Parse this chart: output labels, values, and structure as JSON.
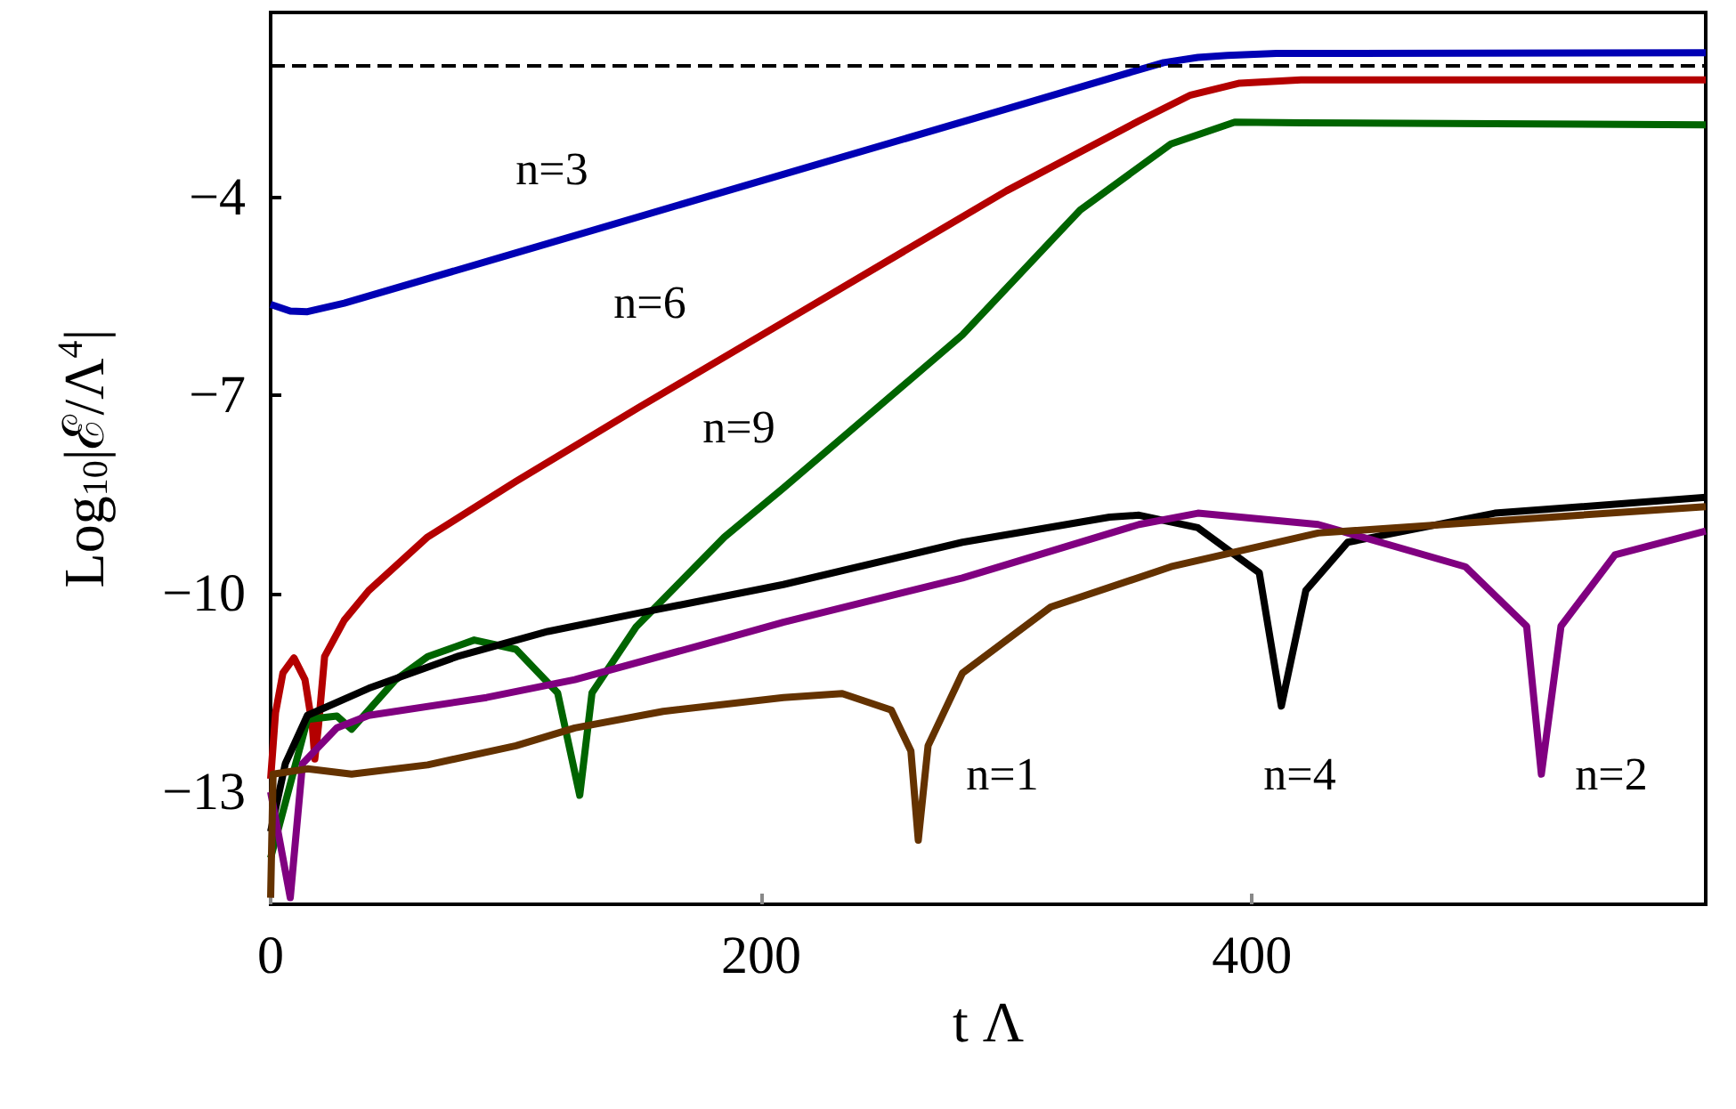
{
  "chart_data": {
    "type": "line",
    "xlabel": "t Λ",
    "ylabel": "Log$_{10}$|ℰ/Λ$^{4}$|",
    "xlim": [
      0,
      585
    ],
    "xticks": [
      0,
      200,
      400
    ],
    "ylim": [
      -14.7,
      -1.2
    ],
    "yticks": [
      -4,
      -7,
      -10,
      -13
    ],
    "grid": false,
    "marker": "none",
    "line_style": "solid",
    "series": [
      {
        "name": "n=3",
        "color": "#0000b4",
        "x": [
          0,
          8,
          15,
          30,
          100,
          209,
          300,
          350,
          364,
          378,
          390,
          410,
          585
        ],
        "values": [
          -5.62,
          -5.72,
          -5.73,
          -5.6,
          -4.84,
          -3.65,
          -2.66,
          -2.11,
          -1.96,
          -1.88,
          -1.85,
          -1.82,
          -1.81
        ]
      },
      {
        "name": "n=6",
        "color": "#b40000",
        "x": [
          0,
          2,
          5,
          9.5,
          14,
          17,
          18,
          19.5,
          22,
          30,
          40,
          64,
          100,
          150,
          209,
          300,
          354,
          375,
          395,
          420,
          585
        ],
        "values": [
          -12.8,
          -11.8,
          -11.2,
          -10.97,
          -11.3,
          -12.0,
          -12.5,
          -12.0,
          -10.95,
          -10.4,
          -9.95,
          -9.14,
          -8.3,
          -7.18,
          -5.89,
          -3.9,
          -2.84,
          -2.45,
          -2.27,
          -2.22,
          -2.22
        ]
      },
      {
        "name": "n=9",
        "color": "#006400",
        "x": [
          0,
          15,
          27,
          33,
          51,
          64,
          83,
          100,
          117,
          126,
          131,
          149,
          185,
          209,
          282,
          330,
          367,
          393,
          420,
          585
        ],
        "values": [
          -14.0,
          -11.9,
          -11.85,
          -12.05,
          -11.3,
          -10.95,
          -10.7,
          -10.84,
          -11.5,
          -13.05,
          -11.5,
          -10.5,
          -9.14,
          -8.4,
          -6.08,
          -4.19,
          -3.19,
          -2.86,
          -2.87,
          -2.9
        ]
      },
      {
        "name": "n=4",
        "color": "#000000",
        "x": [
          0,
          6,
          15,
          40,
          76,
          113,
          149,
          209,
          282,
          342,
          354,
          378,
          403,
          412,
          422,
          439,
          499,
          585
        ],
        "values": [
          -13.6,
          -12.57,
          -11.84,
          -11.43,
          -10.95,
          -10.57,
          -10.3,
          -9.86,
          -9.22,
          -8.84,
          -8.81,
          -9.0,
          -9.68,
          -11.7,
          -9.95,
          -9.22,
          -8.78,
          -8.54
        ]
      },
      {
        "name": "n=2",
        "color": "#800080",
        "x": [
          0,
          8,
          13,
          27,
          40,
          88,
          124,
          185,
          209,
          282,
          354,
          378,
          427,
          487,
          512,
          518,
          526,
          548,
          585
        ],
        "values": [
          -13.0,
          -14.6,
          -12.57,
          -12.03,
          -11.84,
          -11.57,
          -11.3,
          -10.68,
          -10.43,
          -9.76,
          -8.95,
          -8.78,
          -8.95,
          -9.59,
          -10.49,
          -12.73,
          -10.49,
          -9.41,
          -9.05
        ]
      },
      {
        "name": "n=1",
        "color": "#643200",
        "x": [
          0,
          1,
          15,
          33,
          64,
          100,
          124,
          160,
          209,
          233,
          253,
          261,
          264,
          268,
          282,
          318,
          367,
          427,
          585
        ],
        "values": [
          -14.6,
          -12.73,
          -12.65,
          -12.73,
          -12.59,
          -12.3,
          -12.03,
          -11.78,
          -11.57,
          -11.51,
          -11.76,
          -12.38,
          -13.73,
          -12.3,
          -11.2,
          -10.2,
          -9.59,
          -9.08,
          -8.68
        ]
      }
    ],
    "ref_lines": [
      {
        "axis": "y",
        "value": -2,
        "label": null,
        "color": "#000000",
        "line_style": "dashed"
      }
    ]
  }
}
